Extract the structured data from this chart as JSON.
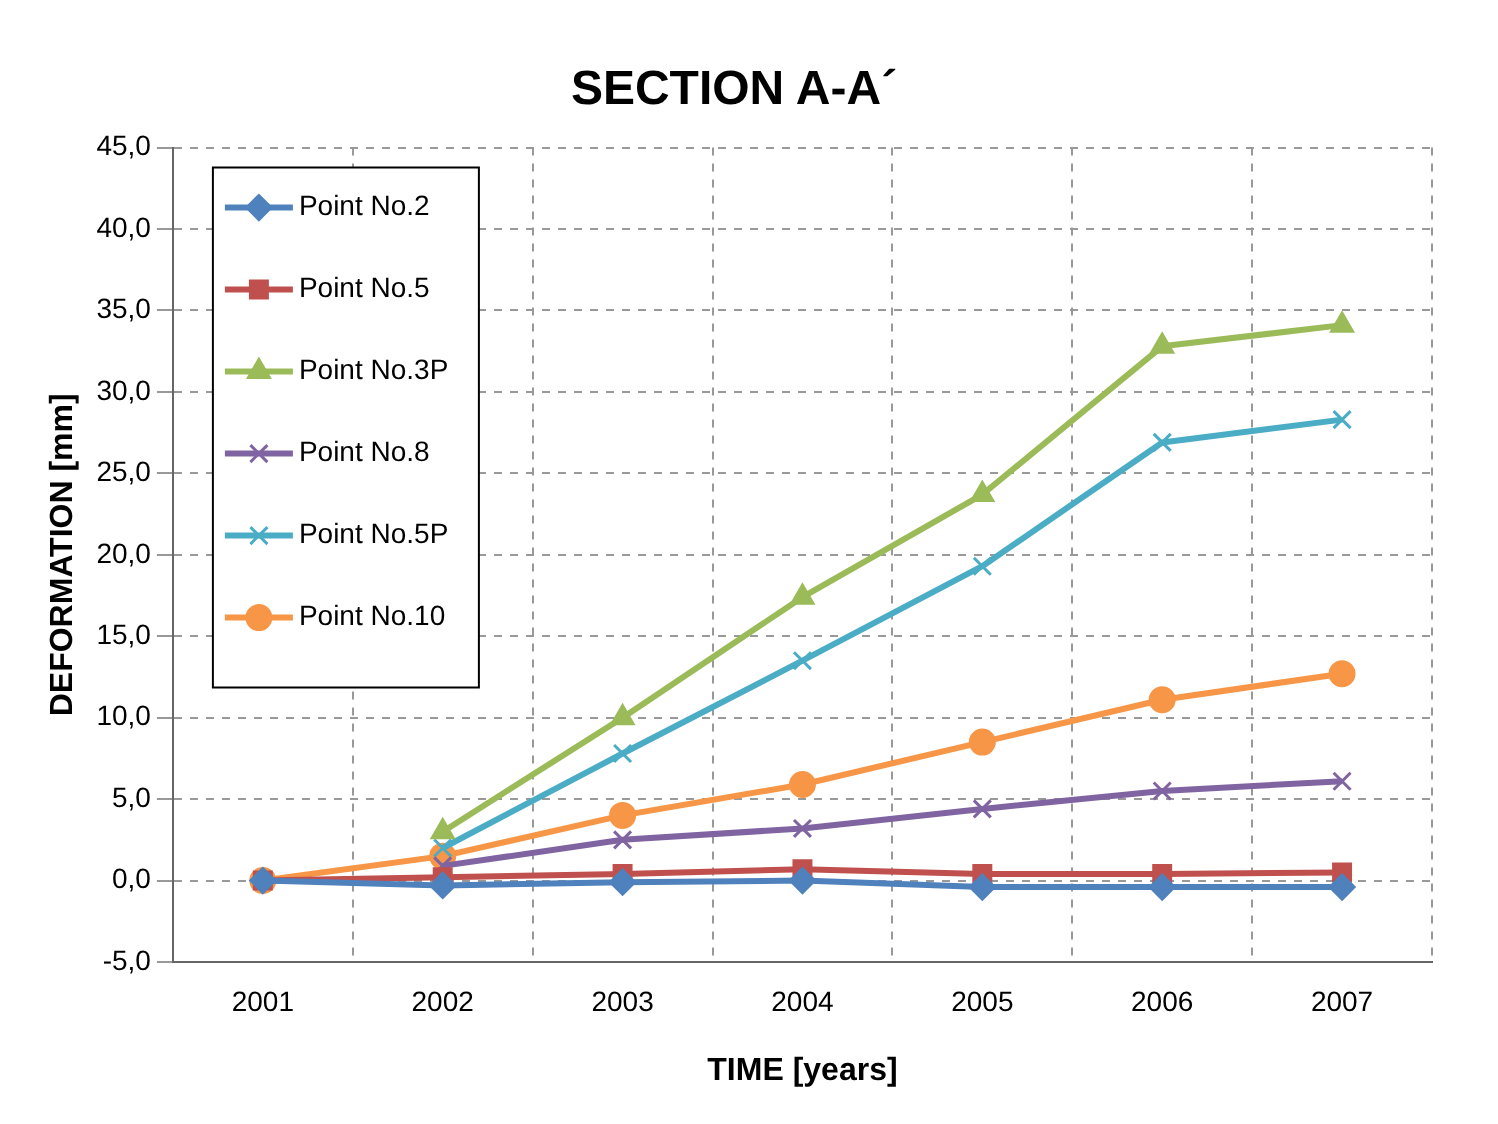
{
  "chart_data": {
    "type": "line",
    "title": "SECTION A-A´",
    "xlabel": "TIME [years]",
    "ylabel": "DEFORMATION [mm]",
    "categories": [
      "2001",
      "2002",
      "2003",
      "2004",
      "2005",
      "2006",
      "2007"
    ],
    "series": [
      {
        "name": "Point No.2",
        "color": "#4f81bd",
        "marker": "diamond",
        "values": [
          0,
          -0.3,
          -0.1,
          0,
          -0.4,
          -0.4,
          -0.4
        ]
      },
      {
        "name": "Point No.5",
        "color": "#c0504d",
        "marker": "square",
        "values": [
          0,
          0.2,
          0.4,
          0.7,
          0.4,
          0.4,
          0.5
        ]
      },
      {
        "name": "Point No.3P",
        "color": "#9bbb59",
        "marker": "triangle",
        "values": [
          null,
          3.0,
          10.0,
          17.4,
          23.7,
          32.8,
          34.1
        ]
      },
      {
        "name": "Point No.8",
        "color": "#8064a2",
        "marker": "cross",
        "values": [
          null,
          0.9,
          2.5,
          3.2,
          4.4,
          5.5,
          6.1
        ]
      },
      {
        "name": "Point No.5P",
        "color": "#4bacc6",
        "marker": "cross",
        "values": [
          null,
          2.0,
          7.8,
          13.5,
          19.3,
          26.9,
          28.3
        ]
      },
      {
        "name": "Point No.10",
        "color": "#f79646",
        "marker": "circle",
        "values": [
          0,
          1.5,
          4.0,
          5.9,
          8.5,
          11.1,
          12.7
        ]
      }
    ],
    "ylim": [
      -5,
      45
    ],
    "yticks": [
      {
        "value": -5,
        "label": "-5,0"
      },
      {
        "value": 0,
        "label": "0,0"
      },
      {
        "value": 5,
        "label": "5,0"
      },
      {
        "value": 10,
        "label": "10,0"
      },
      {
        "value": 15,
        "label": "15,0"
      },
      {
        "value": 20,
        "label": "20,0"
      },
      {
        "value": 25,
        "label": "25,0"
      },
      {
        "value": 30,
        "label": "30,0"
      },
      {
        "value": 35,
        "label": "35,0"
      },
      {
        "value": 40,
        "label": "40,0"
      },
      {
        "value": 45,
        "label": "45,0"
      }
    ],
    "grid": true,
    "legend": "top left",
    "line_style": "solid"
  }
}
